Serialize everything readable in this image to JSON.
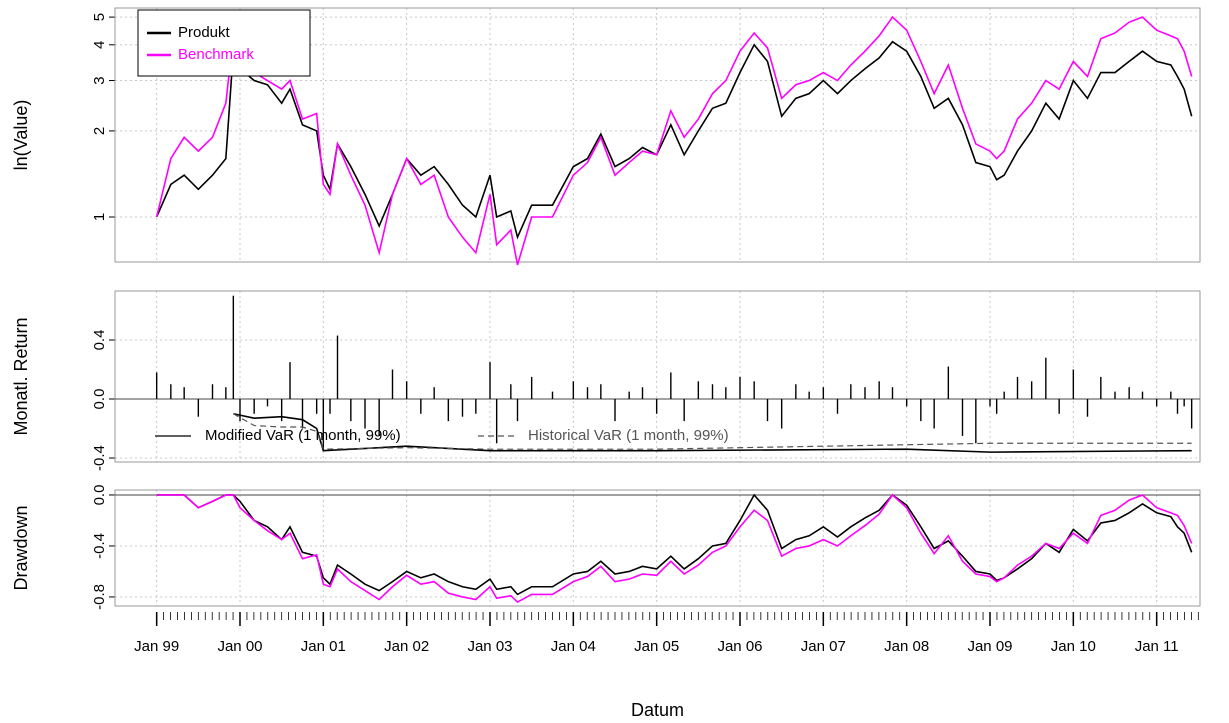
{
  "chart_data": [
    {
      "type": "line",
      "ylabel": "ln(Value)",
      "log": true,
      "grid": true,
      "legend": "top-left",
      "xlim": [
        1998.5,
        2011.52
      ],
      "ylim": [
        0.696,
        5.38
      ],
      "yticks": [
        1,
        2,
        3,
        4,
        5
      ],
      "x": [
        1999.0,
        1999.17,
        1999.33,
        1999.5,
        1999.67,
        1999.83,
        1999.92,
        2000.0,
        2000.17,
        2000.33,
        2000.5,
        2000.6,
        2000.75,
        2000.92,
        2001.0,
        2001.08,
        2001.17,
        2001.33,
        2001.5,
        2001.67,
        2001.83,
        2002.0,
        2002.17,
        2002.33,
        2002.5,
        2002.67,
        2002.83,
        2003.0,
        2003.08,
        2003.25,
        2003.33,
        2003.5,
        2003.75,
        2004.0,
        2004.17,
        2004.33,
        2004.5,
        2004.67,
        2004.83,
        2005.0,
        2005.17,
        2005.33,
        2005.5,
        2005.67,
        2005.83,
        2006.0,
        2006.17,
        2006.33,
        2006.5,
        2006.67,
        2006.83,
        2007.0,
        2007.17,
        2007.33,
        2007.5,
        2007.67,
        2007.83,
        2008.0,
        2008.17,
        2008.33,
        2008.5,
        2008.67,
        2008.83,
        2009.0,
        2009.08,
        2009.17,
        2009.33,
        2009.5,
        2009.67,
        2009.83,
        2010.0,
        2010.17,
        2010.33,
        2010.5,
        2010.67,
        2010.83,
        2011.0,
        2011.17,
        2011.25,
        2011.33,
        2011.42
      ],
      "series": [
        {
          "name": "Produkt",
          "color": "#000000",
          "values": [
            1.0,
            1.3,
            1.4,
            1.25,
            1.4,
            1.6,
            3.8,
            3.3,
            3.0,
            2.9,
            2.5,
            2.8,
            2.1,
            2.0,
            1.4,
            1.25,
            1.8,
            1.5,
            1.2,
            0.93,
            1.2,
            1.6,
            1.4,
            1.5,
            1.3,
            1.1,
            1.0,
            1.4,
            1.0,
            1.05,
            0.85,
            1.1,
            1.1,
            1.5,
            1.6,
            1.95,
            1.5,
            1.6,
            1.75,
            1.65,
            2.1,
            1.65,
            2.0,
            2.4,
            2.5,
            3.2,
            4.0,
            3.5,
            2.25,
            2.6,
            2.7,
            3.0,
            2.7,
            3.0,
            3.3,
            3.6,
            4.1,
            3.8,
            3.1,
            2.4,
            2.6,
            2.1,
            1.55,
            1.5,
            1.35,
            1.4,
            1.7,
            2.0,
            2.5,
            2.2,
            3.0,
            2.6,
            3.2,
            3.2,
            3.5,
            3.8,
            3.5,
            3.4,
            3.1,
            2.8,
            2.25
          ]
        },
        {
          "name": "Benchmark",
          "color": "#ff00ff",
          "values": [
            1.0,
            1.6,
            1.9,
            1.7,
            1.9,
            2.5,
            4.3,
            3.8,
            3.2,
            3.0,
            2.8,
            3.0,
            2.2,
            2.3,
            1.3,
            1.2,
            1.8,
            1.4,
            1.1,
            0.75,
            1.2,
            1.6,
            1.3,
            1.4,
            1.0,
            0.85,
            0.75,
            1.2,
            0.8,
            0.9,
            0.68,
            1.0,
            1.0,
            1.4,
            1.55,
            1.9,
            1.4,
            1.55,
            1.7,
            1.65,
            2.35,
            1.9,
            2.2,
            2.7,
            3.0,
            3.8,
            4.4,
            3.9,
            2.6,
            2.9,
            3.0,
            3.2,
            3.0,
            3.4,
            3.8,
            4.3,
            5.0,
            4.5,
            3.5,
            2.7,
            3.4,
            2.4,
            1.8,
            1.7,
            1.6,
            1.7,
            2.2,
            2.5,
            3.0,
            2.8,
            3.5,
            3.1,
            4.2,
            4.4,
            4.8,
            5.0,
            4.5,
            4.3,
            4.2,
            3.8,
            3.1
          ]
        }
      ]
    },
    {
      "type": "bar",
      "ylabel": "Monatl. Return",
      "grid": true,
      "legend": "bottom-left",
      "color": "#000000",
      "xlim": [
        1998.5,
        2011.52
      ],
      "ylim": [
        -0.427,
        0.732
      ],
      "yticks": [
        0.4,
        {
          "value": 0,
          "label": "0.0"
        },
        -0.4
      ],
      "x": [
        1999.0,
        1999.17,
        1999.33,
        1999.5,
        1999.67,
        1999.83,
        1999.92,
        2000.0,
        2000.17,
        2000.33,
        2000.5,
        2000.6,
        2000.75,
        2000.92,
        2001.0,
        2001.08,
        2001.17,
        2001.33,
        2001.5,
        2001.67,
        2001.83,
        2002.0,
        2002.17,
        2002.33,
        2002.5,
        2002.67,
        2002.83,
        2003.0,
        2003.08,
        2003.25,
        2003.33,
        2003.5,
        2003.75,
        2004.0,
        2004.17,
        2004.33,
        2004.5,
        2004.67,
        2004.83,
        2005.0,
        2005.17,
        2005.33,
        2005.5,
        2005.67,
        2005.83,
        2006.0,
        2006.17,
        2006.33,
        2006.5,
        2006.67,
        2006.83,
        2007.0,
        2007.17,
        2007.33,
        2007.5,
        2007.67,
        2007.83,
        2008.0,
        2008.17,
        2008.33,
        2008.5,
        2008.67,
        2008.83,
        2009.0,
        2009.08,
        2009.17,
        2009.33,
        2009.5,
        2009.67,
        2009.83,
        2010.0,
        2010.17,
        2010.33,
        2010.5,
        2010.67,
        2010.83,
        2011.0,
        2011.17,
        2011.25,
        2011.33,
        2011.42
      ],
      "values": [
        0.18,
        0.1,
        0.08,
        -0.12,
        0.1,
        0.08,
        0.7,
        -0.15,
        -0.1,
        -0.05,
        -0.15,
        0.25,
        -0.2,
        -0.1,
        -0.35,
        -0.1,
        0.43,
        -0.15,
        -0.2,
        -0.25,
        0.2,
        0.12,
        -0.1,
        0.08,
        -0.15,
        -0.12,
        -0.1,
        0.25,
        -0.3,
        0.1,
        -0.15,
        0.15,
        0.05,
        0.12,
        0.08,
        0.1,
        -0.15,
        0.05,
        0.08,
        -0.1,
        0.18,
        -0.15,
        0.12,
        0.1,
        0.08,
        0.15,
        0.12,
        -0.15,
        -0.2,
        0.1,
        0.05,
        0.08,
        -0.1,
        0.1,
        0.08,
        0.12,
        0.08,
        -0.05,
        -0.15,
        -0.2,
        0.22,
        -0.25,
        -0.3,
        -0.05,
        -0.1,
        0.05,
        0.15,
        0.12,
        0.28,
        -0.1,
        0.2,
        -0.12,
        0.15,
        0.05,
        0.08,
        0.05,
        -0.05,
        0.05,
        -0.1,
        -0.05,
        -0.2
      ],
      "series": [
        {
          "name": "Modified VaR (1 month, 99%)",
          "color": "#000000",
          "dash": false,
          "x": [
            1999.92,
            2000.17,
            2000.5,
            2000.75,
            2000.92,
            2001.0,
            2002.0,
            2003.0,
            2005.0,
            2008.0,
            2009.0,
            2011.42
          ],
          "values": [
            -0.1,
            -0.13,
            -0.12,
            -0.14,
            -0.2,
            -0.35,
            -0.32,
            -0.35,
            -0.35,
            -0.34,
            -0.36,
            -0.35
          ]
        },
        {
          "name": "Historical VaR (1 month, 99%)",
          "color": "#555555",
          "dash": true,
          "x": [
            1999.92,
            2000.17,
            2000.5,
            2000.75,
            2000.92,
            2001.0,
            2002.0,
            2003.0,
            2005.0,
            2008.0,
            2009.0,
            2011.42
          ],
          "values": [
            -0.1,
            -0.18,
            -0.19,
            -0.19,
            -0.22,
            -0.34,
            -0.33,
            -0.34,
            -0.34,
            -0.31,
            -0.3,
            -0.3
          ]
        }
      ]
    },
    {
      "type": "line",
      "ylabel": "Drawdown",
      "xlabel": "Datum",
      "grid": true,
      "xlim": [
        1998.5,
        2011.52
      ],
      "ylim": [
        -0.871,
        0.039
      ],
      "yticks": [
        {
          "value": 0,
          "label": "0.0"
        },
        -0.4,
        -0.8
      ],
      "xticks": [
        {
          "value": 1999,
          "label": "Jan 99"
        },
        {
          "value": 2000,
          "label": "Jan 00"
        },
        {
          "value": 2001,
          "label": "Jan 01"
        },
        {
          "value": 2002,
          "label": "Jan 02"
        },
        {
          "value": 2003,
          "label": "Jan 03"
        },
        {
          "value": 2004,
          "label": "Jan 04"
        },
        {
          "value": 2005,
          "label": "Jan 05"
        },
        {
          "value": 2006,
          "label": "Jan 06"
        },
        {
          "value": 2007,
          "label": "Jan 07"
        },
        {
          "value": 2008,
          "label": "Jan 08"
        },
        {
          "value": 2009,
          "label": "Jan 09"
        },
        {
          "value": 2010,
          "label": "Jan 10"
        },
        {
          "value": 2011,
          "label": "Jan 11"
        }
      ],
      "x": [
        1999.0,
        1999.17,
        1999.33,
        1999.5,
        1999.67,
        1999.83,
        1999.92,
        2000.0,
        2000.17,
        2000.33,
        2000.5,
        2000.6,
        2000.75,
        2000.92,
        2001.0,
        2001.08,
        2001.17,
        2001.33,
        2001.5,
        2001.67,
        2001.83,
        2002.0,
        2002.17,
        2002.33,
        2002.5,
        2002.67,
        2002.83,
        2003.0,
        2003.08,
        2003.25,
        2003.33,
        2003.5,
        2003.75,
        2004.0,
        2004.17,
        2004.33,
        2004.5,
        2004.67,
        2004.83,
        2005.0,
        2005.17,
        2005.33,
        2005.5,
        2005.67,
        2005.83,
        2006.0,
        2006.17,
        2006.33,
        2006.5,
        2006.67,
        2006.83,
        2007.0,
        2007.17,
        2007.33,
        2007.5,
        2007.67,
        2007.83,
        2008.0,
        2008.17,
        2008.33,
        2008.5,
        2008.67,
        2008.83,
        2009.0,
        2009.08,
        2009.17,
        2009.33,
        2009.5,
        2009.67,
        2009.83,
        2010.0,
        2010.17,
        2010.33,
        2010.5,
        2010.67,
        2010.83,
        2011.0,
        2011.17,
        2011.25,
        2011.33,
        2011.42
      ],
      "series": [
        {
          "name": "Produkt",
          "color": "#000000",
          "values": [
            0,
            0,
            0,
            -0.1,
            -0.05,
            0,
            0,
            -0.05,
            -0.2,
            -0.25,
            -0.35,
            -0.25,
            -0.45,
            -0.48,
            -0.65,
            -0.7,
            -0.55,
            -0.62,
            -0.7,
            -0.75,
            -0.68,
            -0.6,
            -0.65,
            -0.62,
            -0.68,
            -0.72,
            -0.74,
            -0.66,
            -0.74,
            -0.72,
            -0.78,
            -0.72,
            -0.72,
            -0.62,
            -0.6,
            -0.52,
            -0.62,
            -0.6,
            -0.56,
            -0.58,
            -0.48,
            -0.58,
            -0.5,
            -0.4,
            -0.38,
            -0.2,
            0,
            -0.12,
            -0.42,
            -0.35,
            -0.32,
            -0.25,
            -0.33,
            -0.25,
            -0.18,
            -0.12,
            0,
            -0.08,
            -0.25,
            -0.42,
            -0.36,
            -0.48,
            -0.6,
            -0.62,
            -0.67,
            -0.65,
            -0.58,
            -0.5,
            -0.38,
            -0.45,
            -0.27,
            -0.36,
            -0.22,
            -0.2,
            -0.14,
            -0.07,
            -0.14,
            -0.17,
            -0.25,
            -0.3,
            -0.45
          ]
        },
        {
          "name": "Benchmark",
          "color": "#ff00ff",
          "values": [
            0,
            0,
            0,
            -0.1,
            -0.05,
            0,
            0,
            -0.1,
            -0.2,
            -0.28,
            -0.35,
            -0.3,
            -0.5,
            -0.47,
            -0.7,
            -0.72,
            -0.58,
            -0.68,
            -0.75,
            -0.82,
            -0.72,
            -0.63,
            -0.7,
            -0.68,
            -0.77,
            -0.8,
            -0.82,
            -0.72,
            -0.81,
            -0.79,
            -0.84,
            -0.78,
            -0.78,
            -0.68,
            -0.64,
            -0.56,
            -0.68,
            -0.66,
            -0.62,
            -0.63,
            -0.52,
            -0.62,
            -0.55,
            -0.45,
            -0.4,
            -0.25,
            -0.12,
            -0.2,
            -0.48,
            -0.42,
            -0.4,
            -0.35,
            -0.4,
            -0.32,
            -0.24,
            -0.15,
            0,
            -0.1,
            -0.3,
            -0.46,
            -0.32,
            -0.52,
            -0.62,
            -0.64,
            -0.68,
            -0.65,
            -0.55,
            -0.48,
            -0.38,
            -0.42,
            -0.3,
            -0.38,
            -0.16,
            -0.12,
            -0.04,
            0,
            -0.1,
            -0.14,
            -0.16,
            -0.24,
            -0.38
          ]
        }
      ]
    }
  ]
}
